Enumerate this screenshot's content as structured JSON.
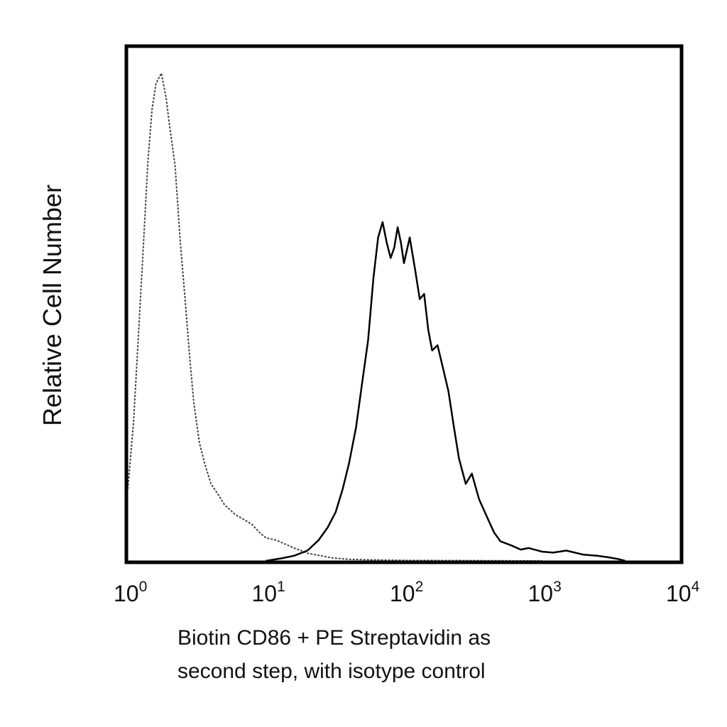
{
  "chart_data": {
    "type": "line",
    "title": "",
    "xlabel_lines": [
      "Biotin CD86 + PE Streptavidin as",
      "second step, with isotype control"
    ],
    "ylabel": "Relative Cell Number",
    "x_scale": "log",
    "xlim": [
      1,
      10000
    ],
    "ylim": [
      0,
      100
    ],
    "x_ticks": [
      {
        "base": "10",
        "exp": "0",
        "value": 1
      },
      {
        "base": "10",
        "exp": "1",
        "value": 10
      },
      {
        "base": "10",
        "exp": "2",
        "value": 100
      },
      {
        "base": "10",
        "exp": "3",
        "value": 1000
      },
      {
        "base": "10",
        "exp": "4",
        "value": 10000
      }
    ],
    "grid": false,
    "legend": "none",
    "series": [
      {
        "style": "dotted",
        "color": "#444444",
        "points": [
          [
            1.0,
            14
          ],
          [
            1.1,
            27
          ],
          [
            1.2,
            45
          ],
          [
            1.3,
            62
          ],
          [
            1.4,
            78
          ],
          [
            1.5,
            88
          ],
          [
            1.6,
            93
          ],
          [
            1.75,
            95
          ],
          [
            1.9,
            90
          ],
          [
            2.0,
            85
          ],
          [
            2.2,
            77
          ],
          [
            2.4,
            62
          ],
          [
            2.6,
            51
          ],
          [
            2.8,
            40
          ],
          [
            3.0,
            31
          ],
          [
            3.3,
            23
          ],
          [
            3.6,
            19
          ],
          [
            4.0,
            15
          ],
          [
            4.5,
            13
          ],
          [
            5.0,
            11
          ],
          [
            6.0,
            9
          ],
          [
            7.0,
            8
          ],
          [
            8.0,
            7
          ],
          [
            9.0,
            5.5
          ],
          [
            10,
            4.5
          ],
          [
            12,
            4
          ],
          [
            14,
            3.2
          ],
          [
            16,
            2.5
          ],
          [
            18,
            2
          ],
          [
            20,
            1.5
          ],
          [
            25,
            1
          ],
          [
            30,
            0.6
          ],
          [
            40,
            0.3
          ],
          [
            60,
            0.2
          ],
          [
            100,
            0.1
          ],
          [
            300,
            0.05
          ],
          [
            1000,
            0
          ]
        ]
      },
      {
        "style": "solid",
        "color": "#000000",
        "points": [
          [
            10,
            0
          ],
          [
            13,
            0.5
          ],
          [
            16,
            1
          ],
          [
            20,
            2
          ],
          [
            24,
            4
          ],
          [
            28,
            6.5
          ],
          [
            32,
            9.5
          ],
          [
            36,
            14
          ],
          [
            40,
            19
          ],
          [
            45,
            26
          ],
          [
            50,
            35
          ],
          [
            55,
            43
          ],
          [
            60,
            55
          ],
          [
            65,
            63
          ],
          [
            70,
            66
          ],
          [
            75,
            62
          ],
          [
            80,
            59
          ],
          [
            85,
            61
          ],
          [
            90,
            65
          ],
          [
            95,
            62
          ],
          [
            100,
            58
          ],
          [
            110,
            63
          ],
          [
            120,
            57
          ],
          [
            130,
            51
          ],
          [
            140,
            52
          ],
          [
            150,
            45
          ],
          [
            160,
            41
          ],
          [
            175,
            42
          ],
          [
            190,
            38
          ],
          [
            210,
            33
          ],
          [
            230,
            26
          ],
          [
            250,
            20
          ],
          [
            280,
            15
          ],
          [
            310,
            17
          ],
          [
            350,
            12
          ],
          [
            400,
            8.5
          ],
          [
            450,
            5.5
          ],
          [
            500,
            3.8
          ],
          [
            600,
            3
          ],
          [
            700,
            2.2
          ],
          [
            800,
            2.5
          ],
          [
            1000,
            1.8
          ],
          [
            1200,
            1.6
          ],
          [
            1500,
            2
          ],
          [
            2000,
            1.2
          ],
          [
            2500,
            1
          ],
          [
            3000,
            0.7
          ],
          [
            3500,
            0.4
          ],
          [
            4000,
            0
          ]
        ]
      }
    ]
  }
}
